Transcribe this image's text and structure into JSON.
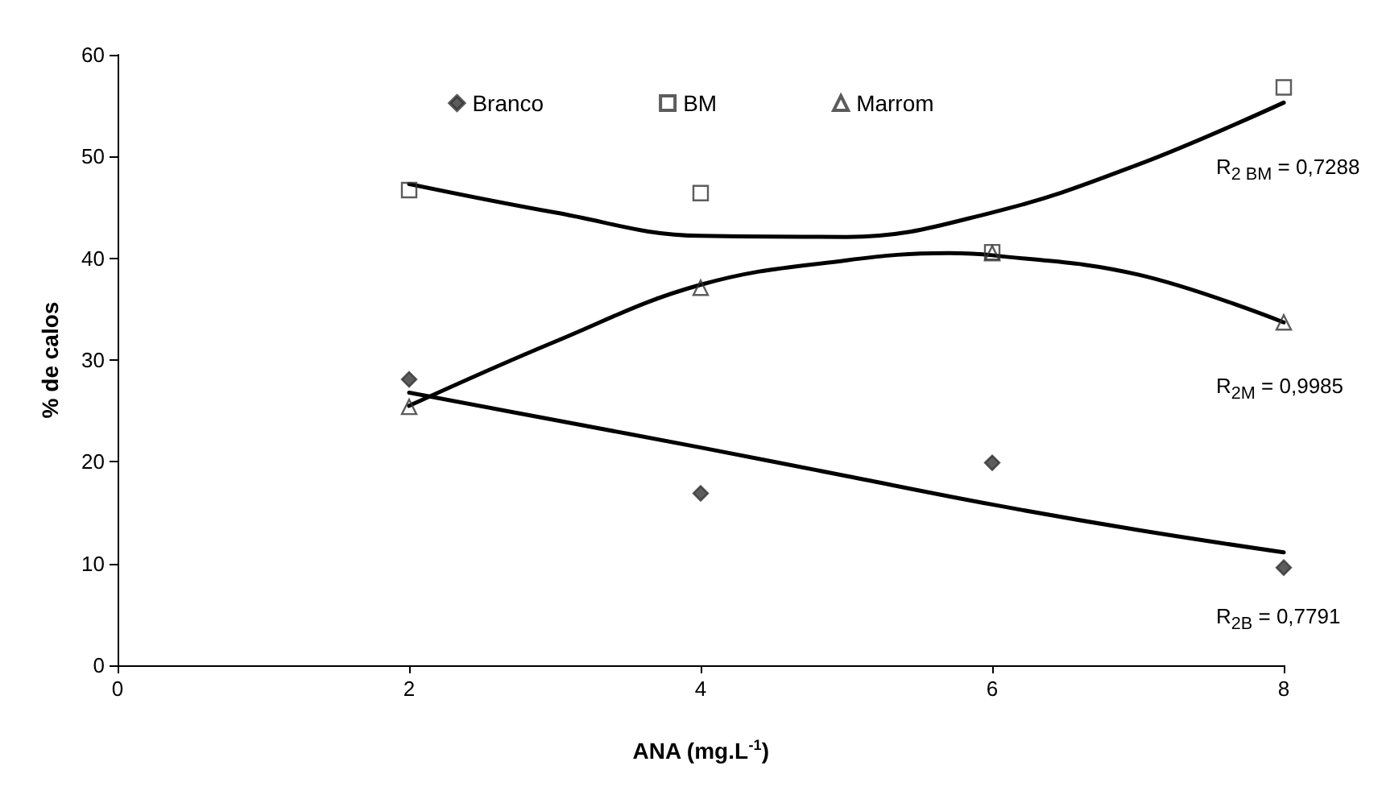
{
  "chart_data": {
    "type": "scatter",
    "xlabel": "ANA (mg.L$^{-1}$)",
    "ylabel": "% de calos",
    "xlim": [
      0,
      8
    ],
    "xticks": [
      0,
      2,
      4,
      6,
      8
    ],
    "ylim": [
      0,
      60
    ],
    "yticks": [
      0,
      10,
      20,
      30,
      40,
      50,
      60
    ],
    "grid": false,
    "legend": "top",
    "x": [
      2,
      4,
      6,
      8
    ],
    "series": [
      {
        "name": "Branco",
        "color": "#333333",
        "marker": "diamond",
        "values": [
          28.1,
          16.9,
          19.9,
          9.6
        ]
      },
      {
        "name": "BM",
        "color": "#333333",
        "marker": "square",
        "values": [
          46.7,
          46.4,
          40.6,
          56.8
        ]
      },
      {
        "name": "Marrom",
        "color": "#333333",
        "marker": "triangle",
        "values": [
          25.4,
          37.1,
          40.5,
          33.7
        ]
      },
      {
        "type": "line",
        "color": "#000000",
        "marker": "none",
        "x": [
          2,
          3,
          4,
          5,
          6,
          7,
          8
        ],
        "values": [
          47.3,
          44.5,
          42.2,
          42.1,
          44.5,
          49.2,
          55.3
        ]
      },
      {
        "type": "line",
        "color": "#000000",
        "marker": "none",
        "x": [
          2,
          3,
          4,
          5,
          5.7,
          6,
          7,
          8
        ],
        "values": [
          25.5,
          31.8,
          37.4,
          39.8,
          40.5,
          40.3,
          38.4,
          33.7
        ]
      },
      {
        "type": "line",
        "color": "#000000",
        "marker": "none",
        "x": [
          2,
          3,
          4,
          5,
          6,
          7,
          8
        ],
        "values": [
          26.8,
          24.1,
          21.4,
          18.6,
          15.8,
          13.3,
          11.1
        ]
      }
    ],
    "annotations": [
      {
        "text": "R$_{2 BM}$ = 0,7288",
        "y": 55.3
      },
      {
        "text": "R$_{2M}$ = 0,9985",
        "y": 33.7
      },
      {
        "text": "R$_{2B}$ = 0,7791",
        "y": 11.1
      }
    ]
  }
}
